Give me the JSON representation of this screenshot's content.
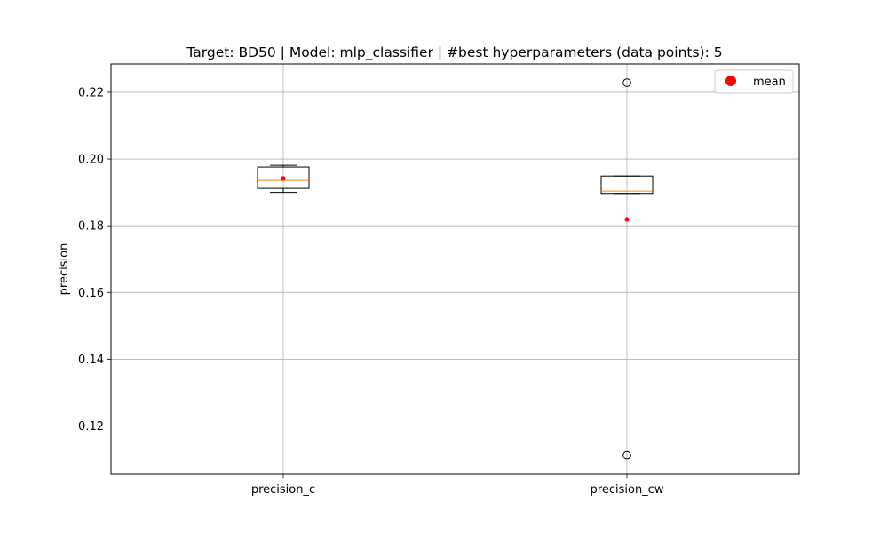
{
  "chart_data": {
    "type": "box",
    "title": "Target: BD50 | Model: mlp_classifier | #best hyperparameters (data points): 5",
    "xlabel": "",
    "ylabel": "precision",
    "ylim": [
      0.1055,
      0.2285
    ],
    "yticks": [
      0.12,
      0.14,
      0.16,
      0.18,
      0.2,
      0.22
    ],
    "ytick_labels": [
      "0.12",
      "0.14",
      "0.16",
      "0.18",
      "0.20",
      "0.22"
    ],
    "grid": true,
    "legend": {
      "placement": "top-right",
      "entries": [
        {
          "label": "mean",
          "color": "#ff0000"
        }
      ]
    },
    "colors": {
      "median": "#ff7f0e",
      "mean": "#ff0000",
      "box": "#000000",
      "grid": "#b0b0b0"
    },
    "categories": [
      "precision_c",
      "precision_cw"
    ],
    "boxes": [
      {
        "name": "precision_c",
        "whisker_low": 0.19,
        "q1": 0.1912,
        "median": 0.1936,
        "q3": 0.1976,
        "whisker_high": 0.1981,
        "mean": 0.1942,
        "outliers": []
      },
      {
        "name": "precision_cw",
        "whisker_low": 0.1897,
        "q1": 0.1897,
        "median": 0.1904,
        "q3": 0.1949,
        "whisker_high": 0.1949,
        "mean": 0.1819,
        "outliers": [
          0.2229,
          0.1112
        ]
      }
    ]
  }
}
